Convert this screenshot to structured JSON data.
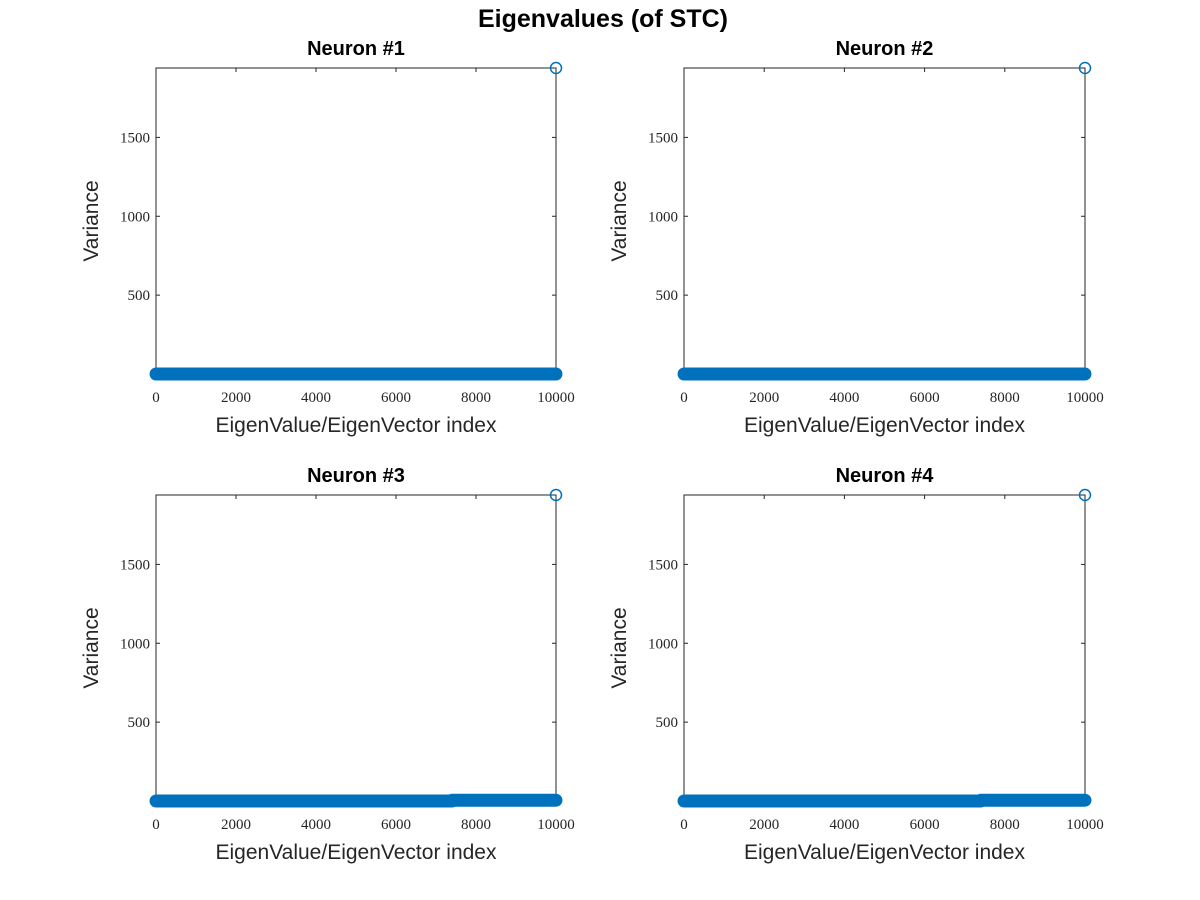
{
  "figure_title": "Eigenvalues (of STC)",
  "chart_data": [
    {
      "type": "scatter",
      "title": "Neuron #1",
      "xlabel": "EigenValue/EigenVector index",
      "ylabel": "Variance",
      "xlim": [
        0,
        10000
      ],
      "ylim": [
        0,
        1940
      ],
      "xticks": [
        0,
        2000,
        4000,
        6000,
        8000,
        10000
      ],
      "yticks": [
        500,
        1000,
        1500
      ],
      "grid": false,
      "marker": "circle-open",
      "color": "#0072BD",
      "series": [
        {
          "x_range": [
            1,
            9999
          ],
          "y": 0,
          "note": "bulk"
        },
        {
          "points": [
            [
              10000,
              1940
            ]
          ]
        }
      ]
    },
    {
      "type": "scatter",
      "title": "Neuron #2",
      "xlabel": "EigenValue/EigenVector index",
      "ylabel": "Variance",
      "xlim": [
        0,
        10000
      ],
      "ylim": [
        0,
        1940
      ],
      "xticks": [
        0,
        2000,
        4000,
        6000,
        8000,
        10000
      ],
      "yticks": [
        500,
        1000,
        1500
      ],
      "grid": false,
      "marker": "circle-open",
      "color": "#0072BD",
      "series": [
        {
          "x_range": [
            1,
            9999
          ],
          "y": 0
        },
        {
          "points": [
            [
              10000,
              1940
            ]
          ]
        }
      ]
    },
    {
      "type": "scatter",
      "title": "Neuron #3",
      "xlabel": "EigenValue/EigenVector index",
      "ylabel": "Variance",
      "xlim": [
        0,
        10000
      ],
      "ylim": [
        0,
        1940
      ],
      "xticks": [
        0,
        2000,
        4000,
        6000,
        8000,
        10000
      ],
      "yticks": [
        500,
        1000,
        1500
      ],
      "grid": false,
      "marker": "circle-open",
      "color": "#0072BD",
      "series": [
        {
          "x_range": [
            1,
            7400
          ],
          "y": 0
        },
        {
          "x_range": [
            7400,
            9999
          ],
          "y": 5
        },
        {
          "points": [
            [
              10000,
              1940
            ]
          ]
        }
      ]
    },
    {
      "type": "scatter",
      "title": "Neuron #4",
      "xlabel": "EigenValue/EigenVector index",
      "ylabel": "Variance",
      "xlim": [
        0,
        10000
      ],
      "ylim": [
        0,
        1940
      ],
      "xticks": [
        0,
        2000,
        4000,
        6000,
        8000,
        10000
      ],
      "yticks": [
        500,
        1000,
        1500
      ],
      "grid": false,
      "marker": "circle-open",
      "color": "#0072BD",
      "series": [
        {
          "x_range": [
            1,
            7400
          ],
          "y": 0
        },
        {
          "x_range": [
            7400,
            9999
          ],
          "y": 5
        },
        {
          "points": [
            [
              10000,
              1940
            ]
          ]
        }
      ]
    }
  ]
}
